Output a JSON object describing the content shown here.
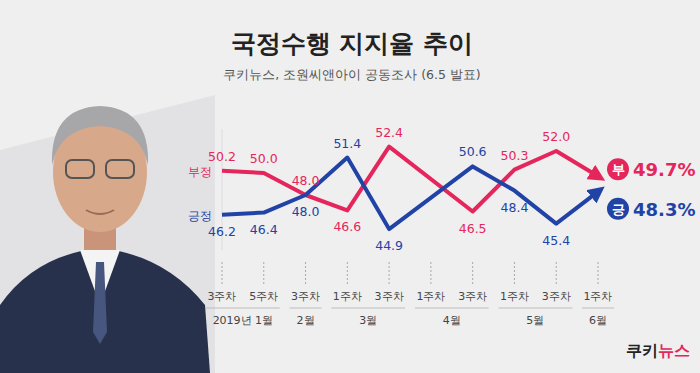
{
  "chart_data": {
    "type": "line",
    "title": "국정수행 지지율 추이",
    "subtitle": "쿠키뉴스, 조원씨앤아이 공동조사 (6.5 발표)",
    "brand": {
      "dark": "쿠키",
      "accent": "뉴스"
    },
    "x": [
      0,
      1,
      2,
      3,
      4,
      6,
      7,
      8,
      9
    ],
    "xlim": [
      0,
      9
    ],
    "xticks": [
      {
        "value": 0,
        "label": "3주차"
      },
      {
        "value": 1,
        "label": "5주차"
      },
      {
        "value": 2,
        "label": "3주차"
      },
      {
        "value": 3,
        "label": "1주차"
      },
      {
        "value": 4,
        "label": "3주차"
      },
      {
        "value": 5,
        "label": "1주차"
      },
      {
        "value": 6,
        "label": "3주차"
      },
      {
        "value": 7,
        "label": "1주차"
      },
      {
        "value": 8,
        "label": "3주차"
      },
      {
        "value": 9,
        "label": "1주차"
      }
    ],
    "x_groups": [
      {
        "label": "2019년 1월",
        "span": 2
      },
      {
        "label": "2월",
        "span": 1
      },
      {
        "label": "3월",
        "span": 2
      },
      {
        "label": "4월",
        "span": 2
      },
      {
        "label": "5월",
        "span": 2
      },
      {
        "label": "6월",
        "span": 1
      }
    ],
    "ylim": [
      43,
      54
    ],
    "grid": false,
    "tick_labels": "x",
    "data_labels": true,
    "series": [
      {
        "name": "부정",
        "badge": "부",
        "color": "#e5265c",
        "line_style": "solid",
        "values": [
          50.2,
          50.0,
          48.0,
          46.6,
          52.4,
          46.5,
          50.3,
          52.0,
          49.7
        ],
        "value_labels": [
          "50.2",
          "50.0",
          "48.0",
          "46.6",
          "52.4",
          "46.5",
          "50.3",
          "52.0",
          "49.7%"
        ]
      },
      {
        "name": "긍정",
        "badge": "긍",
        "color": "#2243a6",
        "line_style": "solid",
        "values": [
          46.2,
          46.4,
          48.0,
          51.4,
          44.9,
          50.6,
          48.4,
          45.4,
          48.3
        ],
        "value_labels": [
          "46.2",
          "46.4",
          "48.0",
          "51.4",
          "44.9",
          "50.6",
          "48.4",
          "45.4",
          "48.3%"
        ]
      }
    ]
  }
}
